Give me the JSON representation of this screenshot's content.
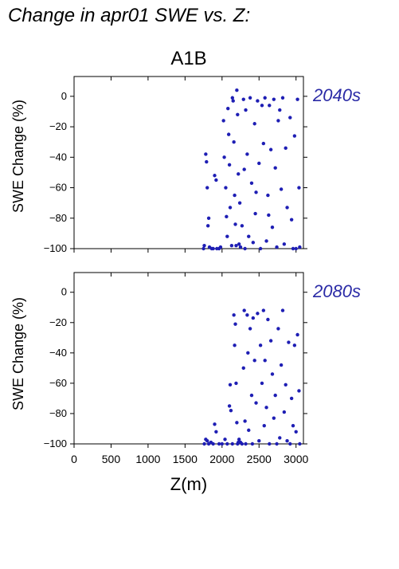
{
  "chart_data": {
    "type": "scatter",
    "title": "Change in apr01 SWE vs. Z:",
    "subtitle": "A1B",
    "xlabel": "Z(m)",
    "ylabel": "SWE Change (%)",
    "xlim": [
      0,
      3100
    ],
    "ylim": [
      -100,
      13
    ],
    "x_ticks": [
      0,
      500,
      1000,
      1500,
      2000,
      2500,
      3000
    ],
    "y_ticks": [
      0,
      -20,
      -40,
      -60,
      -80,
      -100
    ],
    "grid": false,
    "marker_color": "#1e1eb4",
    "label_color": "#2a2aa6",
    "panels": [
      {
        "name": "2040s",
        "points": [
          [
            1750,
            -100
          ],
          [
            1760,
            -98
          ],
          [
            1780,
            -38
          ],
          [
            1790,
            -43
          ],
          [
            1800,
            -60
          ],
          [
            1810,
            -85
          ],
          [
            1820,
            -80
          ],
          [
            1830,
            -99
          ],
          [
            1860,
            -100
          ],
          [
            1880,
            -100
          ],
          [
            1900,
            -52
          ],
          [
            1920,
            -55
          ],
          [
            1930,
            -100
          ],
          [
            1960,
            -100
          ],
          [
            1980,
            -99
          ],
          [
            2020,
            -16
          ],
          [
            2030,
            -40
          ],
          [
            2050,
            -60
          ],
          [
            2060,
            -79
          ],
          [
            2070,
            -92
          ],
          [
            2080,
            -8
          ],
          [
            2090,
            -25
          ],
          [
            2100,
            -45
          ],
          [
            2110,
            -73
          ],
          [
            2130,
            -98
          ],
          [
            2140,
            -1
          ],
          [
            2150,
            -3
          ],
          [
            2160,
            -30
          ],
          [
            2170,
            -65
          ],
          [
            2180,
            -84
          ],
          [
            2190,
            -98
          ],
          [
            2200,
            4
          ],
          [
            2210,
            -12
          ],
          [
            2220,
            -51
          ],
          [
            2230,
            -97
          ],
          [
            2240,
            -70
          ],
          [
            2250,
            -99
          ],
          [
            2290,
            -2
          ],
          [
            2300,
            -48
          ],
          [
            2310,
            -100
          ],
          [
            2320,
            -9
          ],
          [
            2340,
            -38
          ],
          [
            2360,
            -92
          ],
          [
            2380,
            -1
          ],
          [
            2400,
            -57
          ],
          [
            2420,
            -96
          ],
          [
            2440,
            -18
          ],
          [
            2460,
            -63
          ],
          [
            2480,
            -3
          ],
          [
            2500,
            -44
          ],
          [
            2520,
            -100
          ],
          [
            2540,
            -6
          ],
          [
            2560,
            -31
          ],
          [
            2580,
            -1
          ],
          [
            2600,
            -95
          ],
          [
            2620,
            -65
          ],
          [
            2640,
            -6
          ],
          [
            2660,
            -35
          ],
          [
            2680,
            -86
          ],
          [
            2700,
            -2
          ],
          [
            2720,
            -47
          ],
          [
            2740,
            -99
          ],
          [
            2760,
            -16
          ],
          [
            2780,
            -9
          ],
          [
            2800,
            -61
          ],
          [
            2820,
            -1
          ],
          [
            2840,
            -97
          ],
          [
            2860,
            -34
          ],
          [
            2880,
            -73
          ],
          [
            2920,
            -14
          ],
          [
            2940,
            -81
          ],
          [
            2960,
            -100
          ],
          [
            2980,
            -26
          ],
          [
            3000,
            -100
          ],
          [
            3020,
            -2
          ],
          [
            3040,
            -60
          ],
          [
            3050,
            -99
          ],
          [
            2270,
            -85
          ],
          [
            2450,
            -77
          ],
          [
            2630,
            -78
          ]
        ]
      },
      {
        "name": "2080s",
        "points": [
          [
            1760,
            -100
          ],
          [
            1780,
            -97
          ],
          [
            1800,
            -98
          ],
          [
            1820,
            -100
          ],
          [
            1850,
            -99
          ],
          [
            1880,
            -100
          ],
          [
            1900,
            -87
          ],
          [
            1920,
            -92
          ],
          [
            1960,
            -100
          ],
          [
            2000,
            -100
          ],
          [
            2040,
            -97
          ],
          [
            2070,
            -100
          ],
          [
            2100,
            -75
          ],
          [
            2110,
            -61
          ],
          [
            2120,
            -78
          ],
          [
            2140,
            -100
          ],
          [
            2160,
            -15
          ],
          [
            2170,
            -35
          ],
          [
            2180,
            -21
          ],
          [
            2190,
            -60
          ],
          [
            2200,
            -86
          ],
          [
            2210,
            -100
          ],
          [
            2220,
            -99
          ],
          [
            2230,
            -97
          ],
          [
            2250,
            -99
          ],
          [
            2270,
            -100
          ],
          [
            2290,
            -50
          ],
          [
            2300,
            -12
          ],
          [
            2310,
            -85
          ],
          [
            2320,
            -100
          ],
          [
            2340,
            -15
          ],
          [
            2350,
            -40
          ],
          [
            2360,
            -91
          ],
          [
            2380,
            -24
          ],
          [
            2400,
            -68
          ],
          [
            2410,
            -100
          ],
          [
            2420,
            -17
          ],
          [
            2440,
            -45
          ],
          [
            2460,
            -73
          ],
          [
            2480,
            -14
          ],
          [
            2500,
            -98
          ],
          [
            2520,
            -35
          ],
          [
            2540,
            -60
          ],
          [
            2560,
            -12
          ],
          [
            2570,
            -88
          ],
          [
            2580,
            -45
          ],
          [
            2600,
            -76
          ],
          [
            2620,
            -18
          ],
          [
            2640,
            -100
          ],
          [
            2660,
            -32
          ],
          [
            2680,
            -54
          ],
          [
            2700,
            -83
          ],
          [
            2720,
            -68
          ],
          [
            2740,
            -100
          ],
          [
            2760,
            -24
          ],
          [
            2780,
            -96
          ],
          [
            2800,
            -48
          ],
          [
            2820,
            -12
          ],
          [
            2840,
            -79
          ],
          [
            2860,
            -61
          ],
          [
            2880,
            -98
          ],
          [
            2900,
            -33
          ],
          [
            2920,
            -100
          ],
          [
            2940,
            -70
          ],
          [
            2960,
            -88
          ],
          [
            2980,
            -35
          ],
          [
            3000,
            -92
          ],
          [
            3020,
            -28
          ],
          [
            3040,
            -65
          ],
          [
            3050,
            -100
          ]
        ]
      }
    ]
  }
}
